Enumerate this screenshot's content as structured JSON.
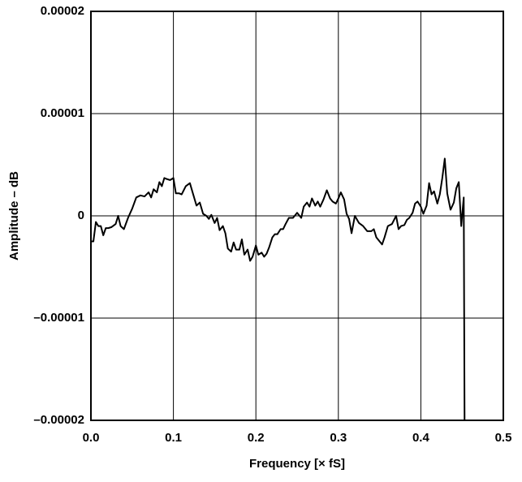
{
  "chart_data": {
    "type": "line",
    "xlabel": "Frequency [× fS]",
    "ylabel": "Amplitude – dB",
    "xlim": [
      0,
      0.5
    ],
    "xticks": [
      {
        "value": 0,
        "label": "0.0"
      },
      0.1,
      0.2,
      0.3,
      0.4,
      0.5
    ],
    "ylim": [
      -2e-05,
      2e-05
    ],
    "yticks": [
      {
        "value": -2e-05,
        "label": "–0.00002"
      },
      {
        "value": -1e-05,
        "label": "–0.00001"
      },
      0,
      1e-05,
      2e-05
    ],
    "grid": true,
    "color": "#000000",
    "x": [
      0.0,
      0.003,
      0.006,
      0.009,
      0.012,
      0.015,
      0.018,
      0.021,
      0.025,
      0.03,
      0.033,
      0.036,
      0.04,
      0.045,
      0.05,
      0.055,
      0.06,
      0.065,
      0.07,
      0.073,
      0.076,
      0.08,
      0.083,
      0.086,
      0.089,
      0.092,
      0.096,
      0.1,
      0.103,
      0.107,
      0.11,
      0.115,
      0.12,
      0.124,
      0.128,
      0.132,
      0.136,
      0.14,
      0.143,
      0.146,
      0.15,
      0.153,
      0.156,
      0.16,
      0.163,
      0.166,
      0.17,
      0.173,
      0.176,
      0.18,
      0.183,
      0.186,
      0.19,
      0.193,
      0.196,
      0.2,
      0.203,
      0.207,
      0.21,
      0.213,
      0.216,
      0.22,
      0.223,
      0.226,
      0.23,
      0.233,
      0.236,
      0.24,
      0.245,
      0.25,
      0.255,
      0.258,
      0.262,
      0.265,
      0.268,
      0.272,
      0.275,
      0.278,
      0.282,
      0.286,
      0.29,
      0.293,
      0.297,
      0.3,
      0.303,
      0.307,
      0.31,
      0.313,
      0.316,
      0.32,
      0.325,
      0.33,
      0.335,
      0.34,
      0.343,
      0.346,
      0.35,
      0.353,
      0.356,
      0.36,
      0.365,
      0.37,
      0.373,
      0.376,
      0.38,
      0.383,
      0.386,
      0.39,
      0.393,
      0.396,
      0.4,
      0.403,
      0.407,
      0.41,
      0.413,
      0.416,
      0.42,
      0.423,
      0.426,
      0.429,
      0.432,
      0.436,
      0.44,
      0.443,
      0.446,
      0.449,
      0.452,
      0.453
    ],
    "values": [
      -2.5e-06,
      -2.5e-06,
      -6e-07,
      -1e-06,
      -1e-06,
      -1.9e-06,
      -1.2e-06,
      -1.2e-06,
      -1.1e-06,
      -8e-07,
      0,
      -1e-06,
      -1.3e-06,
      -2e-07,
      7e-07,
      1.8e-06,
      2e-06,
      1.9e-06,
      2.3e-06,
      1.8e-06,
      2.6e-06,
      2.3e-06,
      3.3e-06,
      2.9e-06,
      3.7e-06,
      3.6e-06,
      3.5e-06,
      3.7e-06,
      2.2e-06,
      2.2e-06,
      2.1e-06,
      2.9e-06,
      3.2e-06,
      2.1e-06,
      1e-06,
      1.3e-06,
      2e-07,
      0,
      -3e-07,
      1e-07,
      -7e-07,
      -2e-07,
      -1.4e-06,
      -1e-06,
      -1.7e-06,
      -3.2e-06,
      -3.5e-06,
      -2.6e-06,
      -3.3e-06,
      -3.3e-06,
      -2.3e-06,
      -3.8e-06,
      -3.3e-06,
      -4.4e-06,
      -4e-06,
      -2.9e-06,
      -3.8e-06,
      -3.6e-06,
      -4e-06,
      -3.7e-06,
      -3.1e-06,
      -2.1e-06,
      -1.8e-06,
      -1.8e-06,
      -1.3e-06,
      -1.3e-06,
      -8e-07,
      -2e-07,
      -2e-07,
      3e-07,
      -2e-07,
      9e-07,
      1.3e-06,
      9e-07,
      1.7e-06,
      1e-06,
      1.4e-06,
      9e-07,
      1.6e-06,
      2.5e-06,
      1.7e-06,
      1.4e-06,
      1.2e-06,
      1.7e-06,
      2.3e-06,
      1.6e-06,
      2e-07,
      -3e-07,
      -1.7e-06,
      0,
      -7e-07,
      -1e-06,
      -1.5e-06,
      -1.5e-06,
      -1.3e-06,
      -2.1e-06,
      -2.5e-06,
      -2.8e-06,
      -2.1e-06,
      -1e-06,
      -8e-07,
      0,
      -1.3e-06,
      -1e-06,
      -9e-07,
      -4e-07,
      -2e-07,
      3e-07,
      1.2e-06,
      1.4e-06,
      9e-07,
      2e-07,
      1e-06,
      3.2e-06,
      2.1e-06,
      2.4e-06,
      1.2e-06,
      2.1e-06,
      3.7e-06,
      5.6e-06,
      2.2e-06,
      6e-07,
      1.3e-06,
      2.7e-06,
      3.3e-06,
      -1e-06,
      1.8e-06,
      -2e-05
    ]
  }
}
